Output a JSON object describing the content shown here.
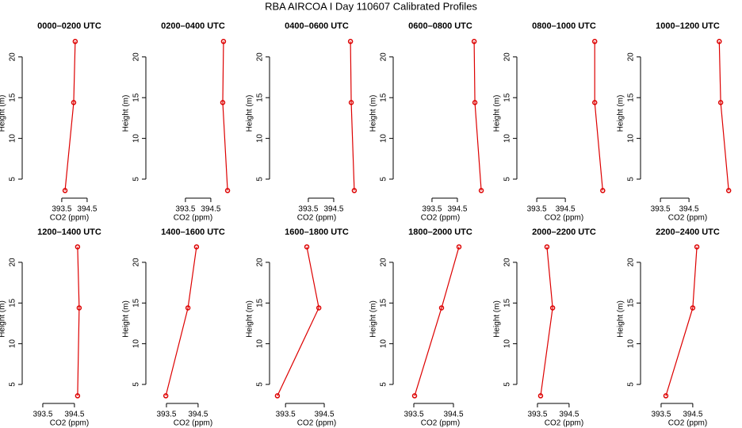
{
  "title": "RBA AIRCOA I  Day 110607  Calibrated Profiles",
  "chart_data": [
    {
      "type": "line",
      "title": "0000–0200 UTC",
      "xlabel": "CO2 (ppm)",
      "ylabel": "Height (m)",
      "color": "#dd0000",
      "x": [
        393.63,
        393.97,
        394.03
      ],
      "y": [
        3.6,
        14.4,
        21.9
      ],
      "xlim": [
        392.13,
        395.47
      ],
      "ylim": [
        3.25,
        22.9
      ],
      "xticks": [
        393.5,
        394.5
      ],
      "yticks": [
        5,
        10,
        15,
        20
      ]
    },
    {
      "type": "line",
      "title": "0200–0400 UTC",
      "xlabel": "CO2 (ppm)",
      "ylabel": "Height (m)",
      "color": "#dd0000",
      "x": [
        395.16,
        394.97,
        395.0
      ],
      "y": [
        3.6,
        14.4,
        21.9
      ],
      "xlim": [
        392.13,
        395.47
      ],
      "ylim": [
        3.25,
        22.9
      ],
      "xticks": [
        393.5,
        394.5
      ],
      "yticks": [
        5,
        10,
        15,
        20
      ]
    },
    {
      "type": "line",
      "title": "0400–0600 UTC",
      "xlabel": "CO2 (ppm)",
      "ylabel": "Height (m)",
      "color": "#dd0000",
      "x": [
        395.31,
        395.19,
        395.16
      ],
      "y": [
        3.6,
        14.4,
        21.9
      ],
      "xlim": [
        392.16,
        395.5
      ],
      "ylim": [
        3.25,
        22.9
      ],
      "xticks": [
        393.5,
        394.5
      ],
      "yticks": [
        5,
        10,
        15,
        20
      ]
    },
    {
      "type": "line",
      "title": "0600–0800 UTC",
      "xlabel": "CO2 (ppm)",
      "ylabel": "Height (m)",
      "color": "#dd0000",
      "x": [
        395.44,
        395.19,
        395.16
      ],
      "y": [
        3.6,
        14.4,
        21.9
      ],
      "xlim": [
        392.16,
        395.5
      ],
      "ylim": [
        3.25,
        22.9
      ],
      "xticks": [
        393.5,
        394.5
      ],
      "yticks": [
        5,
        10,
        15,
        20
      ]
    },
    {
      "type": "line",
      "title": "0800–1000 UTC",
      "xlabel": "CO2 (ppm)",
      "ylabel": "Height (m)",
      "color": "#dd0000",
      "x": [
        395.81,
        395.53,
        395.53
      ],
      "y": [
        3.6,
        14.4,
        21.9
      ],
      "xlim": [
        392.97,
        395.94
      ],
      "ylim": [
        3.25,
        22.9
      ],
      "xticks": [
        393.5,
        394.5
      ],
      "yticks": [
        5,
        10,
        15,
        20
      ]
    },
    {
      "type": "line",
      "title": "1000–1200 UTC",
      "xlabel": "CO2 (ppm)",
      "ylabel": "Height (m)",
      "color": "#dd0000",
      "x": [
        395.89,
        395.61,
        395.56
      ],
      "y": [
        3.6,
        14.4,
        21.9
      ],
      "xlim": [
        392.97,
        395.94
      ],
      "ylim": [
        3.25,
        22.9
      ],
      "xticks": [
        393.5,
        394.5
      ],
      "yticks": [
        5,
        10,
        15,
        20
      ]
    },
    {
      "type": "line",
      "title": "1200–1400 UTC",
      "xlabel": "CO2 (ppm)",
      "ylabel": "Height (m)",
      "color": "#dd0000",
      "x": [
        394.6,
        394.65,
        394.6
      ],
      "y": [
        3.6,
        14.4,
        21.9
      ],
      "xlim": [
        393.0,
        395.68
      ],
      "ylim": [
        3.25,
        22.82
      ],
      "xticks": [
        393.5,
        394.5
      ],
      "yticks": [
        5,
        10,
        15,
        20
      ]
    },
    {
      "type": "line",
      "title": "1400–1600 UTC",
      "xlabel": "CO2 (ppm)",
      "ylabel": "Height (m)",
      "color": "#dd0000",
      "x": [
        393.48,
        394.18,
        394.45
      ],
      "y": [
        3.6,
        14.4,
        21.9
      ],
      "xlim": [
        393.0,
        395.68
      ],
      "ylim": [
        3.25,
        22.82
      ],
      "xticks": [
        393.5,
        394.5
      ],
      "yticks": [
        5,
        10,
        15,
        20
      ]
    },
    {
      "type": "line",
      "title": "1600–1800 UTC",
      "xlabel": "CO2 (ppm)",
      "ylabel": "Height (m)",
      "color": "#dd0000",
      "x": [
        393.29,
        394.36,
        394.05
      ],
      "y": [
        3.6,
        14.4,
        21.9
      ],
      "xlim": [
        393.21,
        395.4
      ],
      "ylim": [
        3.25,
        22.82
      ],
      "xticks": [
        393.5,
        394.5
      ],
      "yticks": [
        5,
        10,
        15,
        20
      ]
    },
    {
      "type": "line",
      "title": "1800–2000 UTC",
      "xlabel": "CO2 (ppm)",
      "ylabel": "Height (m)",
      "color": "#dd0000",
      "x": [
        393.52,
        394.2,
        394.64
      ],
      "y": [
        3.6,
        14.4,
        21.9
      ],
      "xlim": [
        393.1,
        395.24
      ],
      "ylim": [
        3.25,
        22.82
      ],
      "xticks": [
        393.5,
        394.5
      ],
      "yticks": [
        5,
        10,
        15,
        20
      ]
    },
    {
      "type": "line",
      "title": "2000–2200 UTC",
      "xlabel": "CO2 (ppm)",
      "ylabel": "Height (m)",
      "color": "#dd0000",
      "x": [
        393.6,
        393.98,
        393.8
      ],
      "y": [
        3.6,
        14.4,
        21.9
      ],
      "xlim": [
        393.0,
        395.68
      ],
      "ylim": [
        3.25,
        22.82
      ],
      "xticks": [
        393.5,
        394.5
      ],
      "yticks": [
        5,
        10,
        15,
        20
      ]
    },
    {
      "type": "line",
      "title": "2200–2400 UTC",
      "xlabel": "CO2 (ppm)",
      "ylabel": "Height (m)",
      "color": "#dd0000",
      "x": [
        393.65,
        394.5,
        394.63
      ],
      "y": [
        3.6,
        14.4,
        21.9
      ],
      "xlim": [
        393.0,
        395.68
      ],
      "ylim": [
        3.25,
        22.82
      ],
      "xticks": [
        393.5,
        394.5
      ],
      "yticks": [
        5,
        10,
        15,
        20
      ]
    }
  ]
}
